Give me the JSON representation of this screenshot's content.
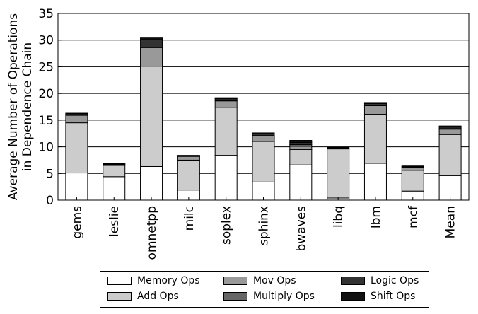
{
  "chart_data": {
    "type": "bar",
    "stacked": true,
    "categories": [
      "gems",
      "leslie",
      "omnetpp",
      "milc",
      "soplex",
      "sphinx",
      "bwaves",
      "libq",
      "lbm",
      "mcf",
      "Mean"
    ],
    "ylabel": [
      "Average Number of Operations",
      "in Dependence Chain"
    ],
    "xlabel": "",
    "ylim": [
      0,
      35
    ],
    "yticks": [
      0,
      5,
      10,
      15,
      20,
      25,
      30,
      35
    ],
    "grid": "horizontal",
    "legend_position": "bottom-center",
    "series": [
      {
        "name": "Memory Ops",
        "color": "#ffffff",
        "values": [
          5.1,
          4.4,
          6.3,
          1.9,
          8.4,
          3.4,
          6.6,
          0.4,
          6.9,
          1.7,
          4.6
        ]
      },
      {
        "name": "Add Ops",
        "color": "#cccccc",
        "values": [
          9.4,
          2.1,
          18.8,
          5.6,
          9.0,
          7.6,
          2.9,
          9.2,
          9.2,
          3.9,
          7.7
        ]
      },
      {
        "name": "Mov Ops",
        "color": "#999999",
        "values": [
          1.4,
          0.2,
          3.5,
          0.7,
          1.2,
          1.0,
          0.6,
          0.1,
          1.6,
          0.5,
          1.0
        ]
      },
      {
        "name": "Multiply Ops",
        "color": "#666666",
        "values": [
          0.1,
          0.0,
          0.1,
          0.1,
          0.1,
          0.1,
          0.3,
          0.0,
          0.1,
          0.1,
          0.1
        ]
      },
      {
        "name": "Logic Ops",
        "color": "#333333",
        "values": [
          0.2,
          0.1,
          1.4,
          0.1,
          0.3,
          0.3,
          0.4,
          0.1,
          0.3,
          0.1,
          0.3
        ]
      },
      {
        "name": "Shift Ops",
        "color": "#111111",
        "values": [
          0.1,
          0.1,
          0.3,
          0.0,
          0.2,
          0.2,
          0.4,
          0.1,
          0.2,
          0.1,
          0.2
        ]
      }
    ]
  }
}
